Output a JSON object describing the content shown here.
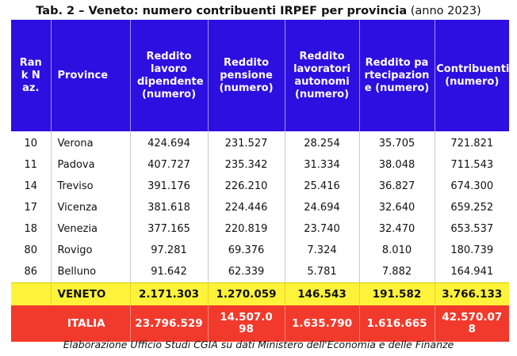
{
  "title": {
    "bold": "Tab. 2 – Veneto: numero contribuenti IRPEF per provincia",
    "normal": " (anno 2023)"
  },
  "headers": {
    "rank": "Rank Naz.",
    "province": "Province",
    "lavoro": "Reddito lavoro dipendente (numero)",
    "pensione": "Reddito pensione (numero)",
    "autonomi": "Reddito lavoratori autonomi (numero)",
    "partecipazione": "Reddito partecipazione (numero)",
    "contribuenti": "Contribuenti (numero)"
  },
  "rows": [
    {
      "rank": "10",
      "province": "Verona",
      "lavoro": "424.694",
      "pensione": "231.527",
      "autonomi": "28.254",
      "partecipazione": "35.705",
      "contribuenti": "721.821"
    },
    {
      "rank": "11",
      "province": "Padova",
      "lavoro": "407.727",
      "pensione": "235.342",
      "autonomi": "31.334",
      "partecipazione": "38.048",
      "contribuenti": "711.543"
    },
    {
      "rank": "14",
      "province": "Treviso",
      "lavoro": "391.176",
      "pensione": "226.210",
      "autonomi": "25.416",
      "partecipazione": "36.827",
      "contribuenti": "674.300"
    },
    {
      "rank": "17",
      "province": "Vicenza",
      "lavoro": "381.618",
      "pensione": "224.446",
      "autonomi": "24.694",
      "partecipazione": "32.640",
      "contribuenti": "659.252"
    },
    {
      "rank": "18",
      "province": "Venezia",
      "lavoro": "377.165",
      "pensione": "220.819",
      "autonomi": "23.740",
      "partecipazione": "32.470",
      "contribuenti": "653.537"
    },
    {
      "rank": "80",
      "province": "Rovigo",
      "lavoro": "97.281",
      "pensione": "69.376",
      "autonomi": "7.324",
      "partecipazione": "8.010",
      "contribuenti": "180.739"
    },
    {
      "rank": "86",
      "province": "Belluno",
      "lavoro": "91.642",
      "pensione": "62.339",
      "autonomi": "5.781",
      "partecipazione": "7.882",
      "contribuenti": "164.941"
    }
  ],
  "veneto": {
    "label": "VENETO",
    "lavoro": "2.171.303",
    "pensione": "1.270.059",
    "autonomi": "146.543",
    "partecipazione": "191.582",
    "contribuenti": "3.766.133"
  },
  "italia": {
    "label": "ITALIA",
    "lavoro": "23.796.529",
    "pensione": "14.507.098",
    "autonomi": "1.635.790",
    "partecipazione": "1.616.665",
    "contribuenti": "42.570.078"
  },
  "footer": "Elaborazione Ufficio Studi CGIA su dati Ministero dell'Economia e delle Finanze",
  "colors": {
    "header_bg": "#2d0fe0",
    "veneto_bg": "#fef33a",
    "italia_bg": "#f23a2c"
  }
}
